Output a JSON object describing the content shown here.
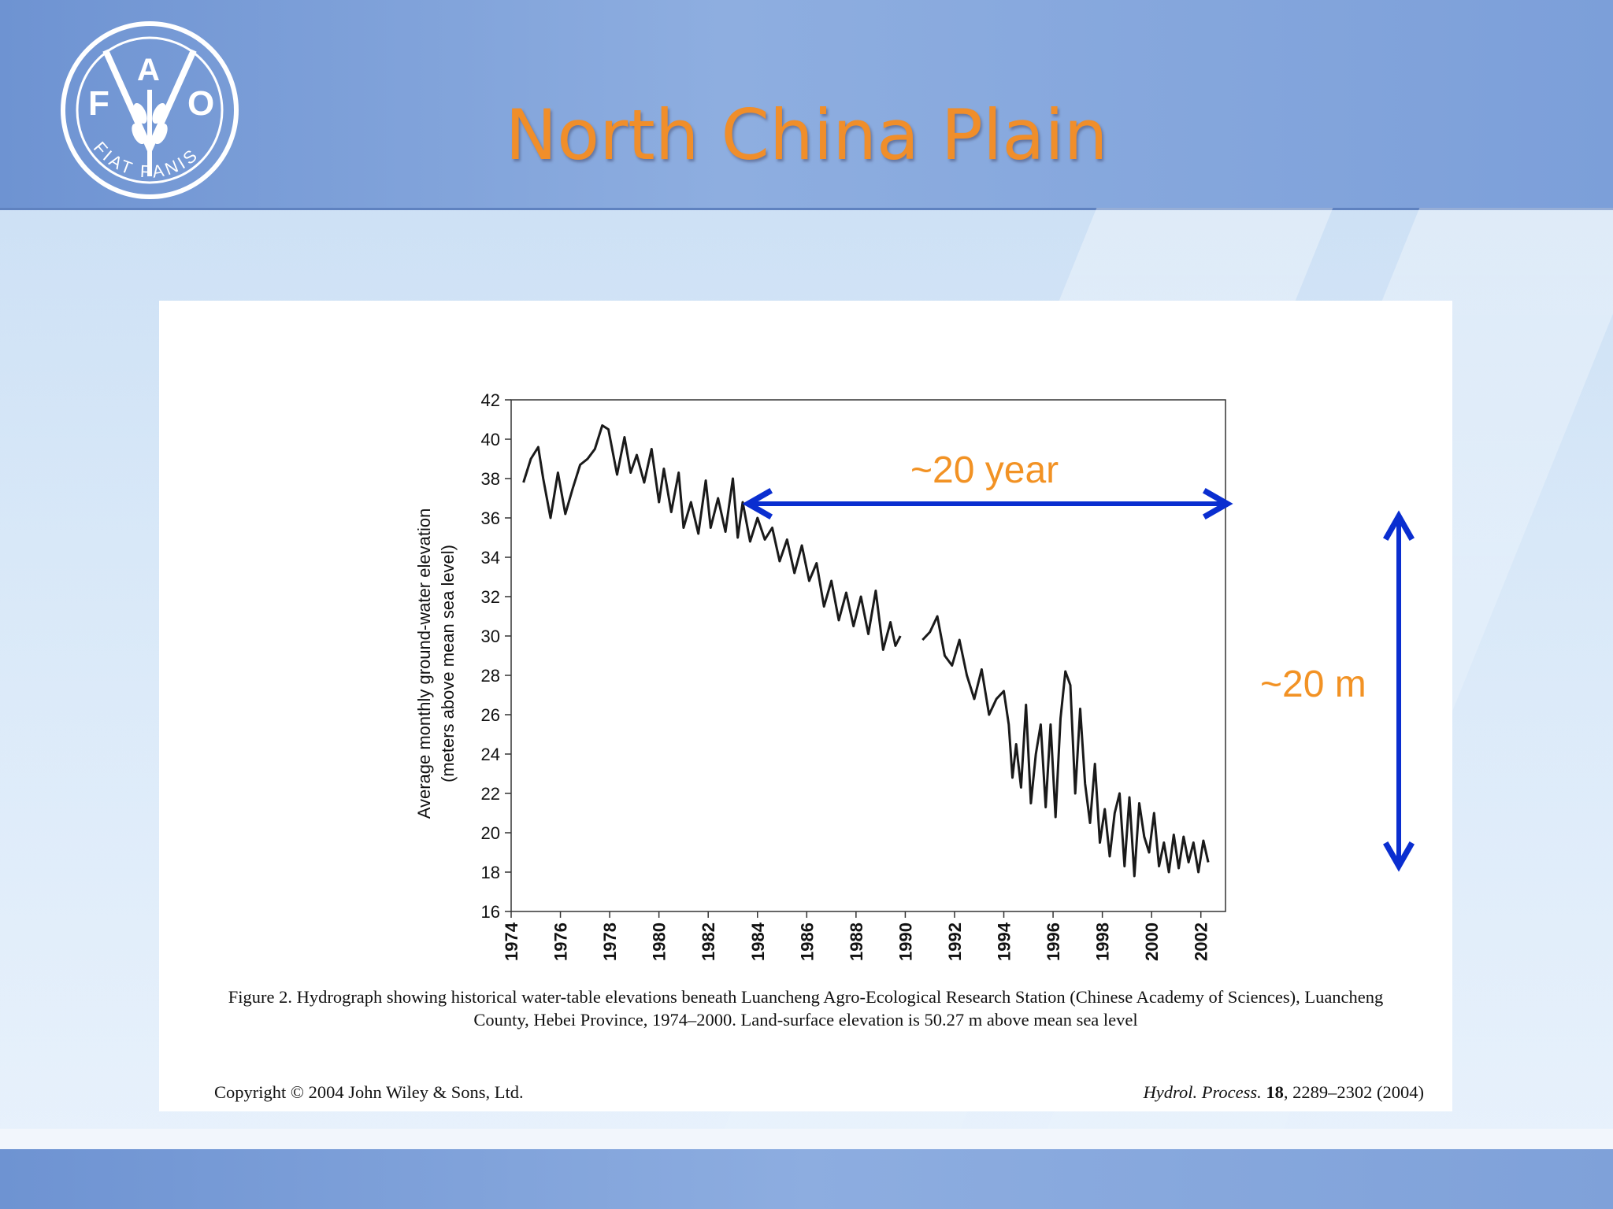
{
  "slide": {
    "title": "North China Plain",
    "logo": {
      "letters": [
        "F",
        "A",
        "O"
      ],
      "motto": "FIAT PANIS"
    },
    "colors": {
      "title": "#f08e2a",
      "arrow": "#0a2ed0",
      "annotation": "#f29224"
    }
  },
  "annotations": {
    "horizontal_label": "~20 year",
    "vertical_label": "~20 m"
  },
  "figure": {
    "caption": "Figure 2. Hydrograph showing historical water-table elevations beneath Luancheng Agro-Ecological Research Station (Chinese Academy of Sciences), Luancheng County, Hebei Province, 1974–2000. Land-surface elevation is 50.27 m above mean sea level",
    "copyright": "Copyright © 2004 John Wiley & Sons, Ltd.",
    "journal_name": "Hydrol. Process.",
    "journal_volume": "18",
    "journal_pages": ", 2289–2302 (2004)"
  },
  "chart_data": {
    "type": "line",
    "title": "",
    "xlabel": "",
    "ylabel": "Average monthly ground-water elevation",
    "ylabel_sub": "(meters above mean sea level)",
    "xlim": [
      1974,
      2003
    ],
    "ylim": [
      16,
      42
    ],
    "xticks": [
      1974,
      1976,
      1978,
      1980,
      1982,
      1984,
      1986,
      1988,
      1990,
      1992,
      1994,
      1996,
      1998,
      2000,
      2002
    ],
    "yticks": [
      16,
      18,
      20,
      22,
      24,
      26,
      28,
      30,
      32,
      34,
      36,
      38,
      40,
      42
    ],
    "grid": false,
    "series": [
      {
        "segment": 1,
        "x": [
          1974.5,
          1974.8,
          1975.1,
          1975.3,
          1975.6,
          1975.9,
          1976.2,
          1976.5,
          1976.8,
          1977.1,
          1977.4,
          1977.7,
          1977.95,
          1978.3,
          1978.6,
          1978.85,
          1979.1,
          1979.4,
          1979.7,
          1980.0,
          1980.2,
          1980.5,
          1980.8,
          1981.0,
          1981.3,
          1981.6,
          1981.9,
          1982.1,
          1982.4,
          1982.7,
          1983.0,
          1983.2,
          1983.4,
          1983.7,
          1984.0,
          1984.3,
          1984.6,
          1984.9,
          1985.2,
          1985.5,
          1985.8,
          1986.1,
          1986.4,
          1986.7,
          1987.0,
          1987.3,
          1987.6,
          1987.9,
          1988.2,
          1988.5,
          1988.8,
          1989.1,
          1989.4,
          1989.6,
          1989.8
        ],
        "y": [
          37.8,
          39.0,
          39.6,
          38.0,
          36.0,
          38.3,
          36.2,
          37.5,
          38.7,
          39.0,
          39.5,
          40.7,
          40.5,
          38.2,
          40.1,
          38.3,
          39.2,
          37.8,
          39.5,
          36.8,
          38.5,
          36.3,
          38.3,
          35.5,
          36.8,
          35.2,
          37.9,
          35.5,
          37.0,
          35.3,
          38.0,
          35.0,
          36.8,
          34.8,
          36.0,
          34.9,
          35.5,
          33.8,
          34.9,
          33.2,
          34.6,
          32.8,
          33.7,
          31.5,
          32.8,
          30.8,
          32.2,
          30.5,
          32.0,
          30.1,
          32.3,
          29.3,
          30.7,
          29.5,
          30.0
        ]
      },
      {
        "segment": 2,
        "x": [
          1990.7,
          1991.0,
          1991.3,
          1991.6,
          1991.9,
          1992.2,
          1992.5,
          1992.8,
          1993.1,
          1993.4,
          1993.7,
          1994.0,
          1994.2,
          1994.35,
          1994.5,
          1994.7,
          1994.9,
          1995.1,
          1995.3,
          1995.5,
          1995.7,
          1995.9,
          1996.1,
          1996.3,
          1996.5,
          1996.7,
          1996.9,
          1997.1,
          1997.3,
          1997.5,
          1997.7,
          1997.9,
          1998.1,
          1998.3,
          1998.5,
          1998.7,
          1998.9,
          1999.1,
          1999.3,
          1999.5,
          1999.7,
          1999.9,
          2000.1,
          2000.3,
          2000.5,
          2000.7,
          2000.9,
          2001.1,
          2001.3,
          2001.5,
          2001.7,
          2001.9,
          2002.1,
          2002.3
        ],
        "y": [
          29.8,
          30.2,
          31.0,
          29.0,
          28.5,
          29.8,
          28.0,
          26.8,
          28.3,
          26.0,
          26.8,
          27.2,
          25.5,
          22.8,
          24.5,
          22.3,
          26.5,
          21.5,
          24.0,
          25.5,
          21.3,
          25.5,
          20.8,
          25.8,
          28.2,
          27.5,
          22.0,
          26.3,
          22.5,
          20.5,
          23.5,
          19.5,
          21.2,
          18.8,
          21.0,
          22.0,
          18.3,
          21.8,
          17.8,
          21.5,
          19.8,
          19.0,
          21.0,
          18.3,
          19.5,
          18.0,
          19.9,
          18.2,
          19.8,
          18.5,
          19.5,
          18.0,
          19.6,
          18.5
        ]
      }
    ]
  }
}
